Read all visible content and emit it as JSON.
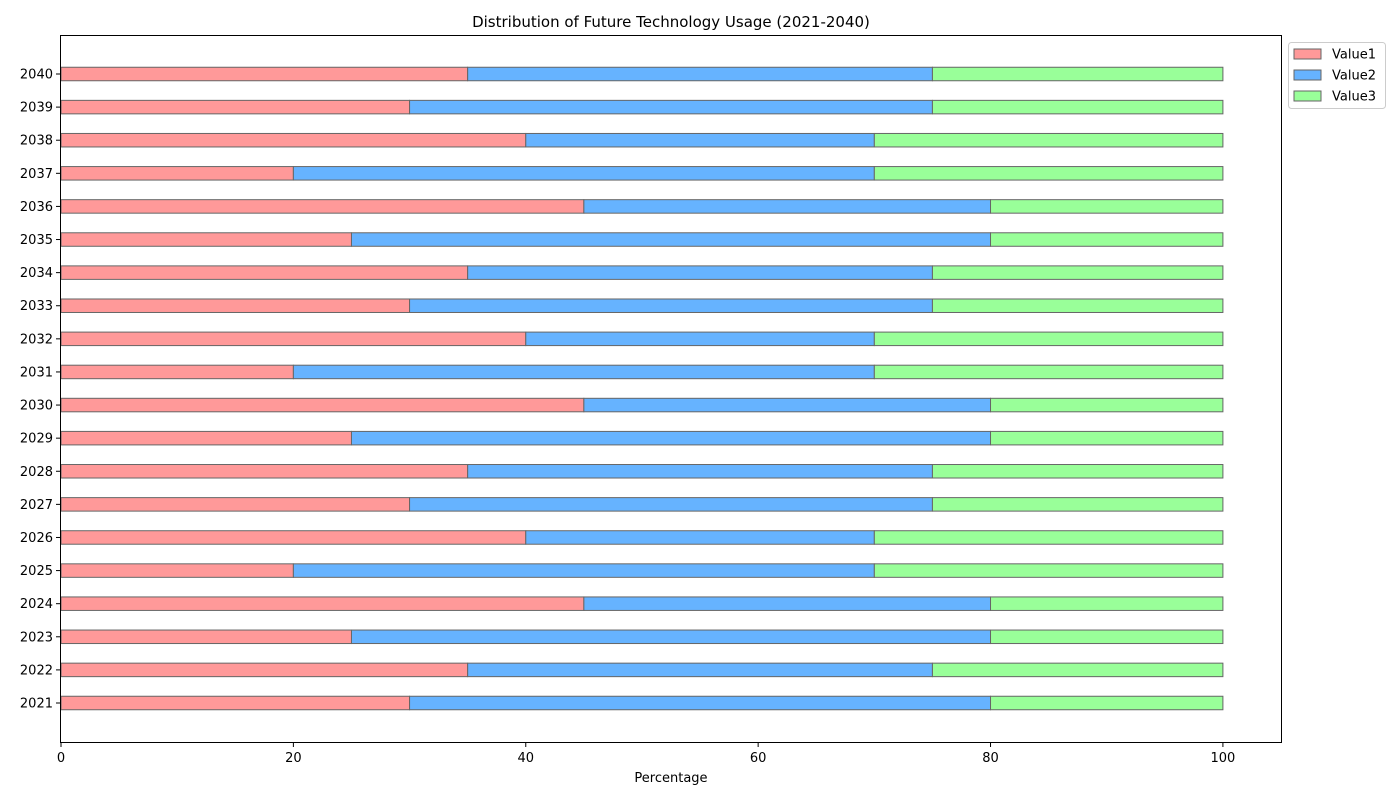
{
  "chart_data": {
    "type": "bar",
    "orientation": "horizontal",
    "stacked": true,
    "title": "Distribution of Future Technology Usage (2021-2040)",
    "xlabel": "Percentage",
    "ylabel": "",
    "xlim": [
      0,
      105
    ],
    "xticks": [
      0,
      20,
      40,
      60,
      80,
      100
    ],
    "grid": false,
    "legend_position": "top-right, outside plot",
    "categories": [
      "2021",
      "2022",
      "2023",
      "2024",
      "2025",
      "2026",
      "2027",
      "2028",
      "2029",
      "2030",
      "2031",
      "2032",
      "2033",
      "2034",
      "2035",
      "2036",
      "2037",
      "2038",
      "2039",
      "2040"
    ],
    "series": [
      {
        "name": "Value1",
        "color": "#ff9999",
        "values": [
          30,
          35,
          25,
          45,
          20,
          40,
          30,
          35,
          25,
          45,
          20,
          40,
          30,
          35,
          25,
          45,
          20,
          40,
          30,
          35
        ]
      },
      {
        "name": "Value2",
        "color": "#66b3ff",
        "values": [
          50,
          40,
          55,
          35,
          50,
          30,
          45,
          40,
          55,
          35,
          50,
          30,
          45,
          40,
          55,
          35,
          50,
          30,
          45,
          40
        ]
      },
      {
        "name": "Value3",
        "color": "#99ff99",
        "values": [
          20,
          25,
          20,
          20,
          30,
          30,
          25,
          25,
          20,
          20,
          30,
          30,
          25,
          25,
          20,
          20,
          30,
          30,
          25,
          25
        ]
      }
    ],
    "edge_color": "#666666"
  }
}
